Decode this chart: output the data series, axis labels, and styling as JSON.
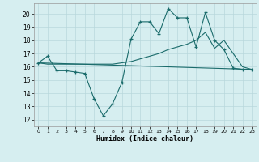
{
  "xlabel": "Humidex (Indice chaleur)",
  "xlim": [
    -0.5,
    23.5
  ],
  "ylim": [
    11.5,
    20.8
  ],
  "yticks": [
    12,
    13,
    14,
    15,
    16,
    17,
    18,
    19,
    20
  ],
  "xticks": [
    0,
    1,
    2,
    3,
    4,
    5,
    6,
    7,
    8,
    9,
    10,
    11,
    12,
    13,
    14,
    15,
    16,
    17,
    18,
    19,
    20,
    21,
    22,
    23
  ],
  "bg_color": "#d6eef0",
  "grid_color": "#b8d8dc",
  "line_color": "#1a6b6b",
  "line1_x": [
    0,
    1,
    2,
    3,
    4,
    5,
    6,
    7,
    8,
    9,
    10,
    11,
    12,
    13,
    14,
    15,
    16,
    17,
    18,
    19,
    20,
    21,
    22,
    23
  ],
  "line1_y": [
    16.3,
    16.8,
    15.7,
    15.7,
    15.6,
    15.5,
    13.6,
    12.3,
    13.2,
    14.8,
    18.1,
    19.4,
    19.4,
    18.5,
    20.4,
    19.7,
    19.7,
    17.5,
    20.1,
    18.0,
    17.3,
    15.9,
    15.8,
    15.8
  ],
  "line2_x": [
    0,
    23
  ],
  "line2_y": [
    16.3,
    15.8
  ],
  "line3_x": [
    0,
    1,
    2,
    3,
    4,
    5,
    6,
    7,
    8,
    9,
    10,
    11,
    12,
    13,
    14,
    15,
    16,
    17,
    18,
    19,
    20,
    21,
    22,
    23
  ],
  "line3_y": [
    16.3,
    16.2,
    16.2,
    16.2,
    16.2,
    16.2,
    16.2,
    16.2,
    16.2,
    16.3,
    16.4,
    16.6,
    16.8,
    17.0,
    17.3,
    17.5,
    17.7,
    18.0,
    18.6,
    17.4,
    18.0,
    17.0,
    16.0,
    15.8
  ]
}
